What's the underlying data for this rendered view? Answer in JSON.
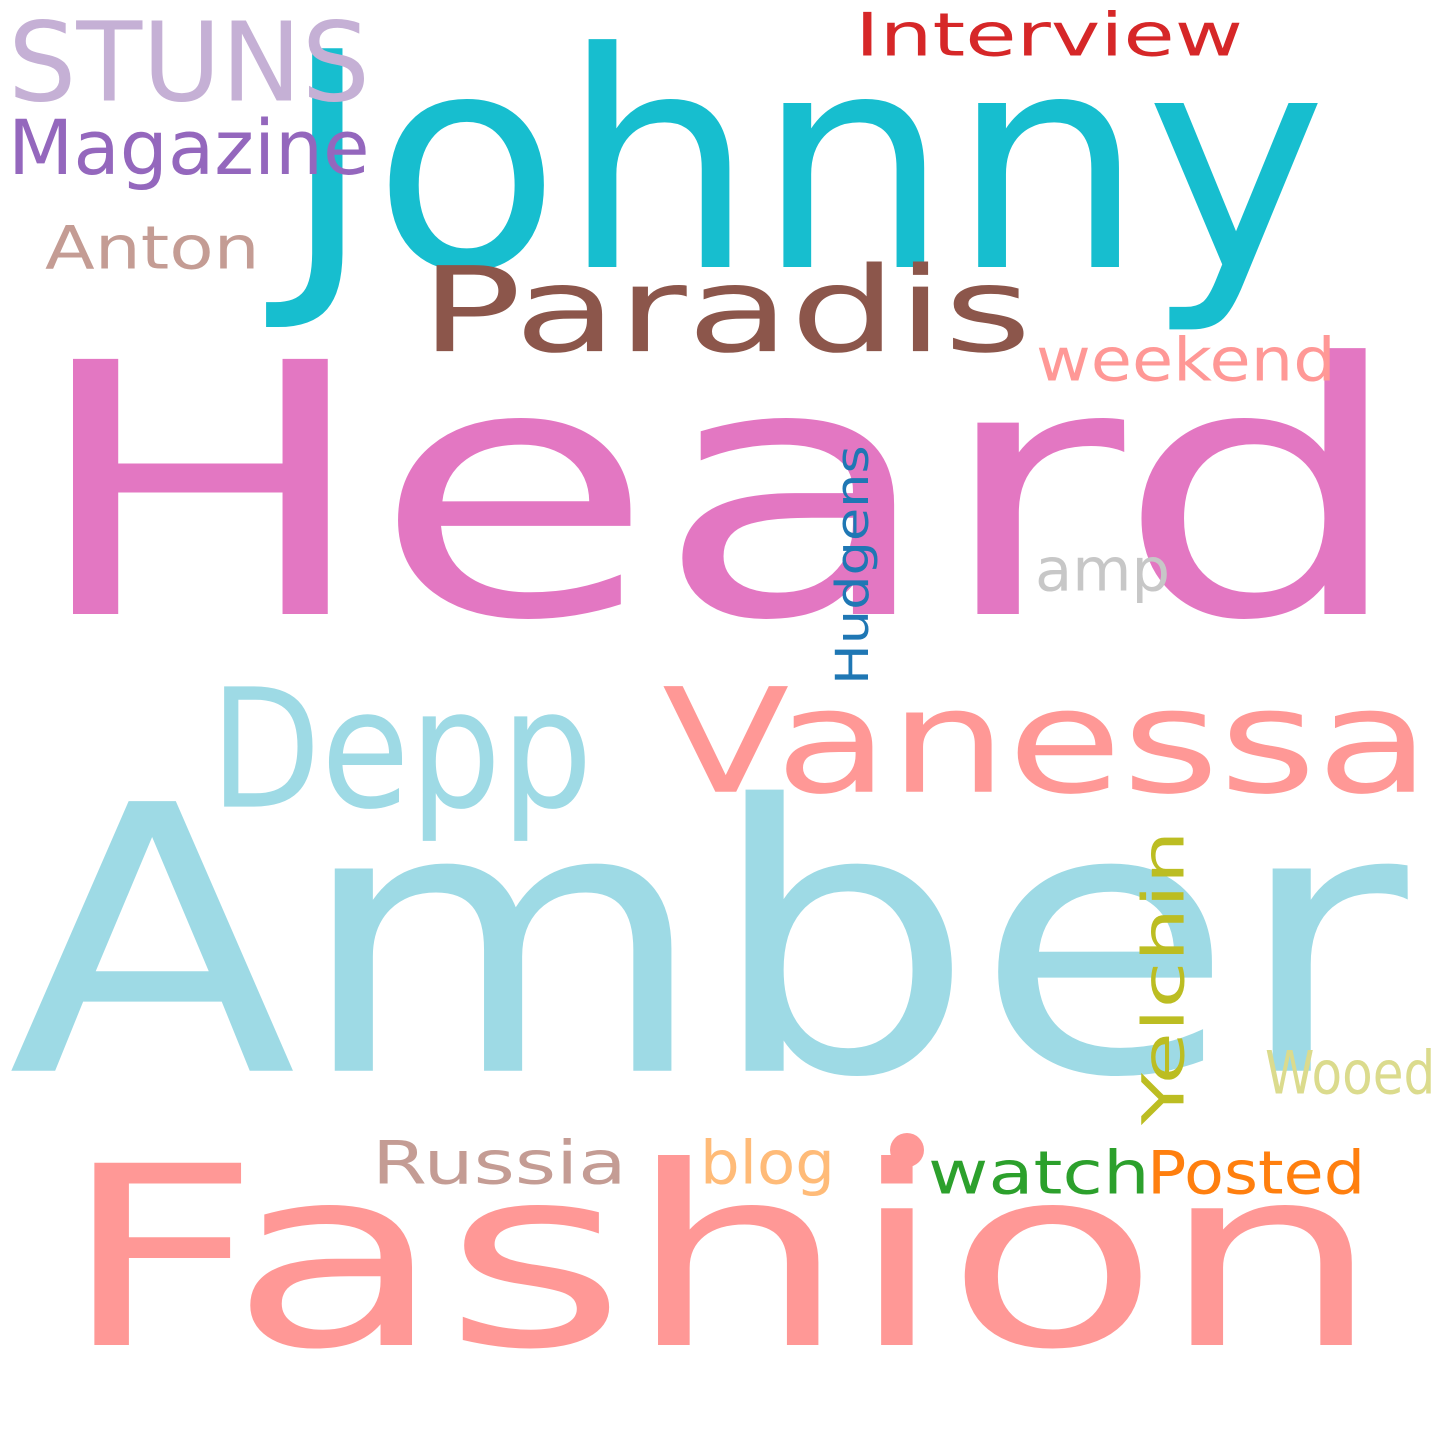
{
  "words": {
    "heard": {
      "text": "Heard",
      "color": "#e377c2"
    },
    "amber": {
      "text": "Amber",
      "color": "#9edae5"
    },
    "fashion": {
      "text": "Fashion",
      "color": "#ff9896"
    },
    "johnny": {
      "text": "Johnny",
      "color": "#17becf"
    },
    "vanessa": {
      "text": "Vanessa",
      "color": "#ff9896"
    },
    "paradis": {
      "text": "Paradis",
      "color": "#8c564b"
    },
    "depp": {
      "text": "Depp",
      "color": "#9edae5"
    },
    "stuns": {
      "text": "STUNS",
      "color": "#c5b0d5"
    },
    "magazine": {
      "text": "Magazine",
      "color": "#9467bd"
    },
    "interview": {
      "text": "Interview",
      "color": "#d62728"
    },
    "anton": {
      "text": "Anton",
      "color": "#c49c94"
    },
    "weekend": {
      "text": "weekend",
      "color": "#ff9896"
    },
    "amp": {
      "text": "amp",
      "color": "#c7c7c7"
    },
    "hudgens": {
      "text": "Hudgens",
      "color": "#1f77b4"
    },
    "yelchin": {
      "text": "Yelchin",
      "color": "#bcbd22"
    },
    "wooed": {
      "text": "Wooed",
      "color": "#dbdb8d"
    },
    "russia": {
      "text": "Russia",
      "color": "#c49c94"
    },
    "blog": {
      "text": "blog",
      "color": "#ffbb78"
    },
    "watch": {
      "text": "watch",
      "color": "#2ca02c"
    },
    "posted": {
      "text": "Posted",
      "color": "#ff7f0e"
    }
  }
}
